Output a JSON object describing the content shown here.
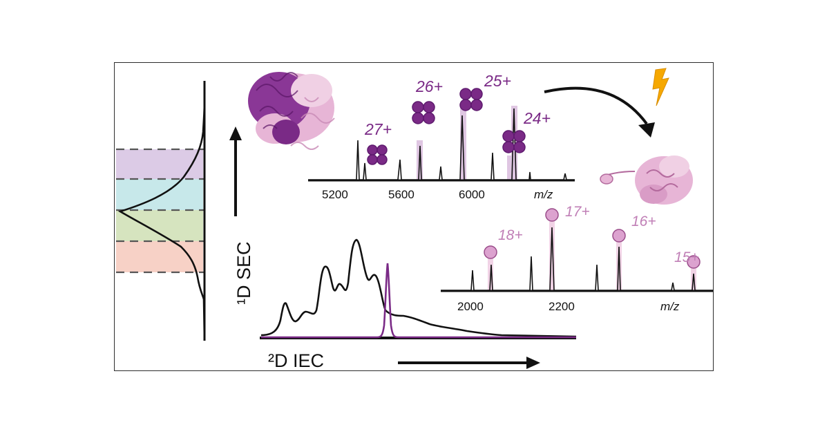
{
  "sec_axis": {
    "label": "¹D SEC",
    "bands": [
      {
        "name": "band-1",
        "color": "#dccbe6"
      },
      {
        "name": "band-2",
        "color": "#c7e8ea"
      },
      {
        "name": "band-3",
        "color": "#d6e4bf"
      },
      {
        "name": "band-4",
        "color": "#f7d1c6"
      }
    ]
  },
  "iec_axis": {
    "label": "²D IEC"
  },
  "tetramer_spectrum": {
    "ticks": [
      "5200",
      "5600",
      "6000"
    ],
    "axis_unit": "m/z",
    "charges": [
      "27+",
      "26+",
      "25+",
      "24+"
    ],
    "color": "#7a2a86"
  },
  "monomer_spectrum": {
    "ticks": [
      "2000",
      "2200"
    ],
    "axis_unit": "m/z",
    "charges": [
      "18+",
      "17+",
      "16+",
      "15+"
    ],
    "color": "#dca2cf"
  },
  "colors": {
    "dark_protein": "#7a2a86",
    "light_protein": "#e7b5d6",
    "lightning": "#f6a800",
    "trace": "#111111"
  }
}
